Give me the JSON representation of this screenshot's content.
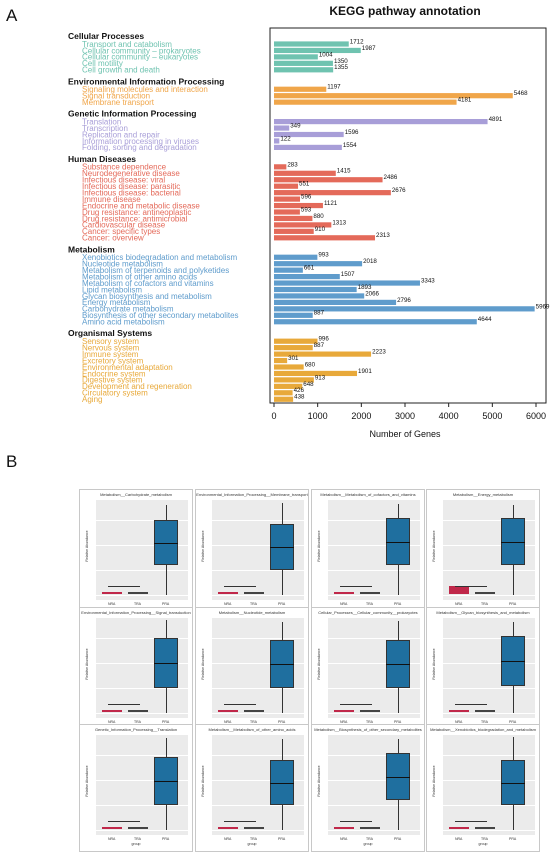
{
  "panel_a_label": "A",
  "panel_b_label": "B",
  "chart_data": [
    {
      "type": "bar",
      "orientation": "horizontal",
      "title": "KEGG pathway annotation",
      "xlabel": "Number of Genes",
      "xlim": [
        0,
        6000
      ],
      "xticks": [
        0,
        1000,
        2000,
        3000,
        4000,
        5000,
        6000
      ],
      "grid": false,
      "groups": [
        {
          "name": "Cellular Processes",
          "color": "#6fc3b0",
          "items": [
            {
              "label": "Transport and catabolism",
              "value": 1712
            },
            {
              "label": "Cellular community – prokaryotes",
              "value": 1987
            },
            {
              "label": "Cellular community – eukaryotes",
              "value": 1004
            },
            {
              "label": "Cell motility",
              "value": 1350
            },
            {
              "label": "Cell growth and death",
              "value": 1355
            }
          ]
        },
        {
          "name": "Environmental Information Processing",
          "color": "#f0a64a",
          "items": [
            {
              "label": "Signaling molecules and interaction",
              "value": 1197
            },
            {
              "label": "Signal transduction",
              "value": 5468
            },
            {
              "label": "Membrane transport",
              "value": 4181
            }
          ]
        },
        {
          "name": "Genetic Information Processing",
          "color": "#a89ed8",
          "items": [
            {
              "label": "Translation",
              "value": 4891
            },
            {
              "label": "Transcription",
              "value": 349
            },
            {
              "label": "Replication and repair",
              "value": 1596
            },
            {
              "label": "Information processing in viruses",
              "value": 122
            },
            {
              "label": "Folding, sorting and degradation",
              "value": 1554
            }
          ]
        },
        {
          "name": "Human Diseases",
          "color": "#e46a5a",
          "items": [
            {
              "label": "Substance dependence",
              "value": 283
            },
            {
              "label": "Neurodegenerative disease",
              "value": 1415
            },
            {
              "label": "Infectious disease: viral",
              "value": 2486
            },
            {
              "label": "Infectious disease: parasitic",
              "value": 551
            },
            {
              "label": "Infectious disease: bacterial",
              "value": 2676
            },
            {
              "label": "Immune disease",
              "value": 596
            },
            {
              "label": "Endocrine and metabolic disease",
              "value": 1121
            },
            {
              "label": "Drug resistance: antineoplastic",
              "value": 593
            },
            {
              "label": "Drug resistance: antimicrobial",
              "value": 880
            },
            {
              "label": "Cardiovascular disease",
              "value": 1313
            },
            {
              "label": "Cancer: specific types",
              "value": 910
            },
            {
              "label": "Cancer: overview",
              "value": 2313
            }
          ]
        },
        {
          "name": "Metabolism",
          "color": "#5f9ccc",
          "items": [
            {
              "label": "Xenobiotics biodegradation and metabolism",
              "value": 993
            },
            {
              "label": "Nucleotide metabolism",
              "value": 2018
            },
            {
              "label": "Metabolism of terpenoids and polyketides",
              "value": 661
            },
            {
              "label": "Metabolism of other amino acids",
              "value": 1507
            },
            {
              "label": "Metabolism of cofactors and vitamins",
              "value": 3343
            },
            {
              "label": "Lipid metabolism",
              "value": 1893
            },
            {
              "label": "Glycan biosynthesis and metabolism",
              "value": 2066
            },
            {
              "label": "Energy metabolism",
              "value": 2796
            },
            {
              "label": "Carbohydrate metabolism",
              "value": 5969
            },
            {
              "label": "Biosynthesis of other secondary metabolites",
              "value": 887
            },
            {
              "label": "Amino acid metabolism",
              "value": 4644
            }
          ]
        },
        {
          "name": "Organismal Systems",
          "color": "#e8a93a",
          "items": [
            {
              "label": "Sensory system",
              "value": 996
            },
            {
              "label": "Nervous system",
              "value": 887
            },
            {
              "label": "Immune system",
              "value": 2223
            },
            {
              "label": "Excretory system",
              "value": 301
            },
            {
              "label": "Environmental adaptation",
              "value": 680
            },
            {
              "label": "Endocrine system",
              "value": 1901
            },
            {
              "label": "Digestive system",
              "value": 913
            },
            {
              "label": "Development and regeneration",
              "value": 648
            },
            {
              "label": "Circulatory system",
              "value": 426
            },
            {
              "label": "Aging",
              "value": 438
            }
          ]
        }
      ]
    },
    {
      "type": "box",
      "panels": [
        {
          "title": "Metabolism__Carbohydrate_metabolism",
          "ylabel": "Relative Abundance",
          "xlabel": "group",
          "categories": [
            "NRA",
            "TRA",
            "PRA"
          ],
          "highlight": false
        },
        {
          "title": "Environmental_Information_Processing__Membrane_transport",
          "ylabel": "Relative Abundance",
          "xlabel": "group",
          "categories": [
            "NRA",
            "TRA",
            "PRA"
          ],
          "highlight": false
        },
        {
          "title": "Metabolism__Metabolism_of_cofactors_and_vitamins",
          "ylabel": "Relative Abundance",
          "xlabel": "group",
          "categories": [
            "NRA",
            "TRA",
            "PRA"
          ],
          "highlight": false
        },
        {
          "title": "Metabolism__Energy_metabolism",
          "ylabel": "Relative Abundance",
          "xlabel": "group",
          "categories": [
            "NRA",
            "TRA",
            "PRA"
          ],
          "highlight": true
        },
        {
          "title": "Environmental_Information_Processing__Signal_transduction",
          "ylabel": "Relative Abundance",
          "xlabel": "group",
          "categories": [
            "NRA",
            "TRA",
            "PRA"
          ],
          "highlight": false
        },
        {
          "title": "Metabolism__Nucleotide_metabolism",
          "ylabel": "Relative Abundance",
          "xlabel": "group",
          "categories": [
            "NRA",
            "TRA",
            "PRA"
          ],
          "highlight": false
        },
        {
          "title": "Cellular_Processes__Cellular_community__prokaryotes",
          "ylabel": "Relative Abundance",
          "xlabel": "group",
          "categories": [
            "NRA",
            "TRA",
            "PRA"
          ],
          "highlight": false
        },
        {
          "title": "Metabolism__Glycan_biosynthesis_and_metabolism",
          "ylabel": "Relative Abundance",
          "xlabel": "group",
          "categories": [
            "NRA",
            "TRA",
            "PRA"
          ],
          "highlight": false
        },
        {
          "title": "Genetic_Information_Processing__Translation",
          "ylabel": "Relative Abundance",
          "xlabel": "group",
          "categories": [
            "NRA",
            "TRA",
            "PRA"
          ],
          "highlight": false
        },
        {
          "title": "Metabolism__Metabolism_of_other_amino_acids",
          "ylabel": "Relative Abundance",
          "xlabel": "group",
          "categories": [
            "NRA",
            "TRA",
            "PRA"
          ],
          "highlight": false
        },
        {
          "title": "Metabolism__Biosynthesis_of_other_secondary_metabolites",
          "ylabel": "Relative Abundance",
          "xlabel": "group",
          "categories": [
            "NRA",
            "TRA",
            "PRA"
          ],
          "highlight": false
        },
        {
          "title": "Metabolism__Xenobiotics_biodegradation_and_metabolism",
          "ylabel": "Relative Abundance",
          "xlabel": "group",
          "categories": [
            "NRA",
            "TRA",
            "PRA"
          ],
          "highlight": false
        }
      ]
    }
  ]
}
